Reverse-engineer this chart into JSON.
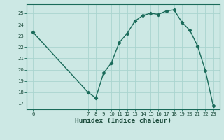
{
  "x": [
    0,
    7,
    8,
    9,
    10,
    11,
    12,
    13,
    14,
    15,
    16,
    17,
    18,
    19,
    20,
    21,
    22,
    23
  ],
  "y": [
    23.3,
    18.0,
    17.5,
    19.7,
    20.6,
    22.4,
    23.2,
    24.3,
    24.8,
    25.0,
    24.9,
    25.2,
    25.3,
    24.2,
    23.5,
    22.1,
    19.9,
    16.8
  ],
  "line_color": "#1a6b5a",
  "bg_color": "#cce8e4",
  "grid_color": "#aad4cf",
  "xlabel": "Humidex (Indice chaleur)",
  "ylim": [
    16.5,
    25.8
  ],
  "xlim": [
    -0.8,
    23.8
  ],
  "yticks": [
    17,
    18,
    19,
    20,
    21,
    22,
    23,
    24,
    25
  ],
  "xticks": [
    0,
    7,
    8,
    9,
    10,
    11,
    12,
    13,
    14,
    15,
    16,
    17,
    18,
    19,
    20,
    21,
    22,
    23
  ],
  "xtick_labels": [
    "0",
    "7",
    "8",
    "9",
    "10",
    "11",
    "12",
    "13",
    "14",
    "15",
    "16",
    "17",
    "18",
    "19",
    "20",
    "21",
    "22",
    "23"
  ],
  "marker": "D",
  "marker_size": 2.2,
  "line_width": 1.0,
  "tick_fontsize": 5.2,
  "ylabel_fontsize": 6.5,
  "xlabel_fontsize": 6.8
}
